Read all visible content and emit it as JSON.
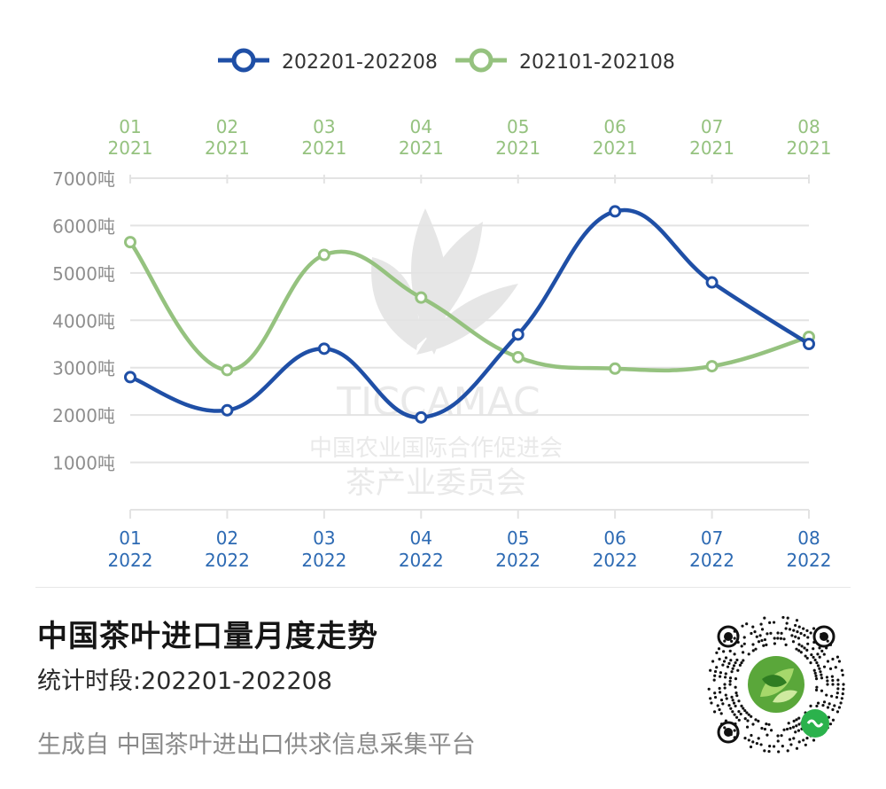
{
  "chart_data": {
    "type": "line",
    "smooth": true,
    "categories_2022": [
      {
        "month": "01",
        "year": "2022"
      },
      {
        "month": "02",
        "year": "2022"
      },
      {
        "month": "03",
        "year": "2022"
      },
      {
        "month": "04",
        "year": "2022"
      },
      {
        "month": "05",
        "year": "2022"
      },
      {
        "month": "06",
        "year": "2022"
      },
      {
        "month": "07",
        "year": "2022"
      },
      {
        "month": "08",
        "year": "2022"
      }
    ],
    "categories_2021": [
      {
        "month": "01",
        "year": "2021"
      },
      {
        "month": "02",
        "year": "2021"
      },
      {
        "month": "03",
        "year": "2021"
      },
      {
        "month": "04",
        "year": "2021"
      },
      {
        "month": "05",
        "year": "2021"
      },
      {
        "month": "06",
        "year": "2021"
      },
      {
        "month": "07",
        "year": "2021"
      },
      {
        "month": "08",
        "year": "2021"
      }
    ],
    "series": [
      {
        "name": "202201-202208",
        "color": "#1f4fa6",
        "values": [
          2800,
          2100,
          3400,
          1950,
          3700,
          6300,
          4800,
          3500
        ]
      },
      {
        "name": "202101-202108",
        "color": "#95c27f",
        "values": [
          5650,
          2950,
          5380,
          4480,
          3220,
          2980,
          3030,
          3650
        ]
      }
    ],
    "y_ticks": [
      "1000吨",
      "2000吨",
      "3000吨",
      "4000吨",
      "5000吨",
      "6000吨",
      "7000吨"
    ],
    "ylim": [
      0,
      7000
    ],
    "grid": true,
    "legend_position": "top-center"
  },
  "watermark": {
    "line1": "TICCAMAC",
    "line2": "中国农业国际合作促进会",
    "line3": "茶产业委员会"
  },
  "title": "中国茶叶进口量月度走势",
  "period": "统计时段:202201-202208",
  "footer": "生成自 中国茶叶进出口供求信息采集平台",
  "colors": {
    "axis_2022": "#2d6ab3",
    "axis_2021": "#95c27f",
    "tick_label": "#8e8e8e",
    "grid": "#e3e3e3"
  }
}
